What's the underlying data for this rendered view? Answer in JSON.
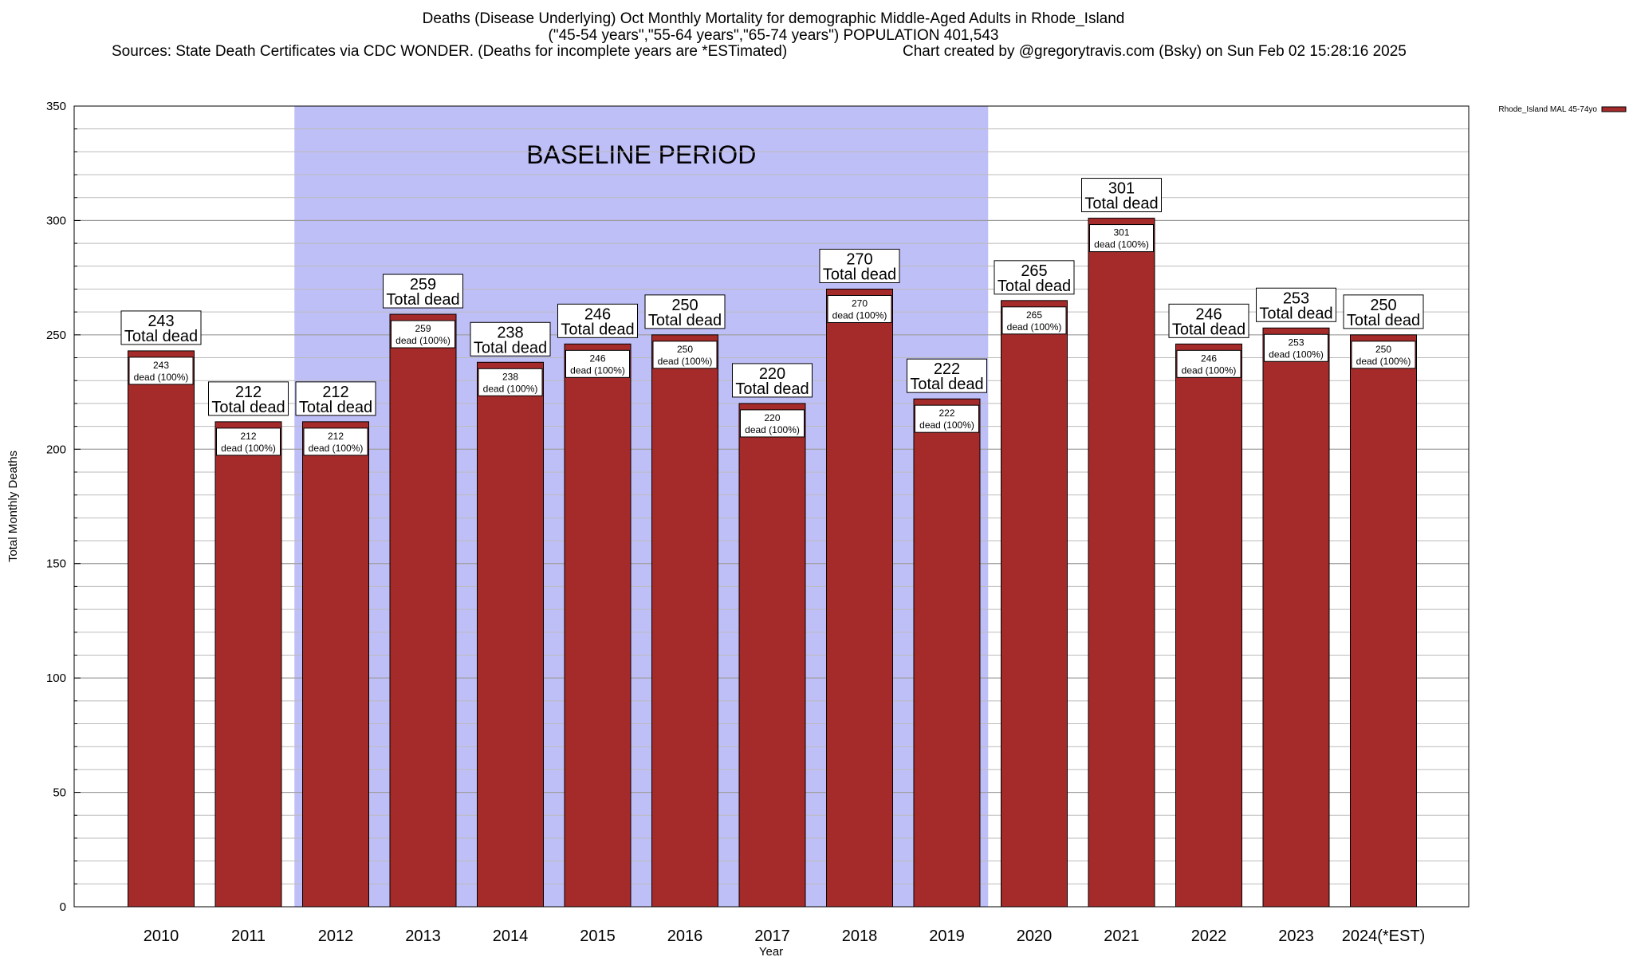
{
  "header": {
    "title_line1": "Deaths (Disease Underlying) Oct Monthly Mortality for demographic Middle-Aged Adults in Rhode_Island",
    "title_line2": "(\"45-54 years\",\"55-64 years\",\"65-74 years\") POPULATION 401,543",
    "sources": "Sources: State Death Certificates via CDC WONDER. (Deaths for incomplete years are *ESTimated)",
    "credit": "Chart created by @gregorytravis.com (Bsky) on Sun Feb 02 15:28:16 2025"
  },
  "chart_data": {
    "type": "bar",
    "xlabel": "Year",
    "ylabel": "Total Monthly Deaths",
    "ylim": [
      0,
      350
    ],
    "yticks": [
      0,
      50,
      100,
      150,
      200,
      250,
      300,
      350
    ],
    "grid": true,
    "legend_position": "top-right",
    "categories": [
      "2010",
      "2011",
      "2012",
      "2013",
      "2014",
      "2015",
      "2016",
      "2017",
      "2018",
      "2019",
      "2020",
      "2021",
      "2022",
      "2023",
      "2024(*EST)"
    ],
    "series": [
      {
        "name": "Rhode_Island MAL 45-74yo",
        "color": "#a52a2a",
        "values": [
          243,
          212,
          212,
          259,
          238,
          246,
          250,
          220,
          270,
          222,
          265,
          301,
          246,
          253,
          250
        ]
      }
    ],
    "top_label_suffix": "Total dead",
    "inner_label_suffix": "dead (100%)",
    "baseline": {
      "label": "BASELINE PERIOD",
      "from": "2012",
      "to": "2019",
      "color": "#bfbff8"
    }
  }
}
